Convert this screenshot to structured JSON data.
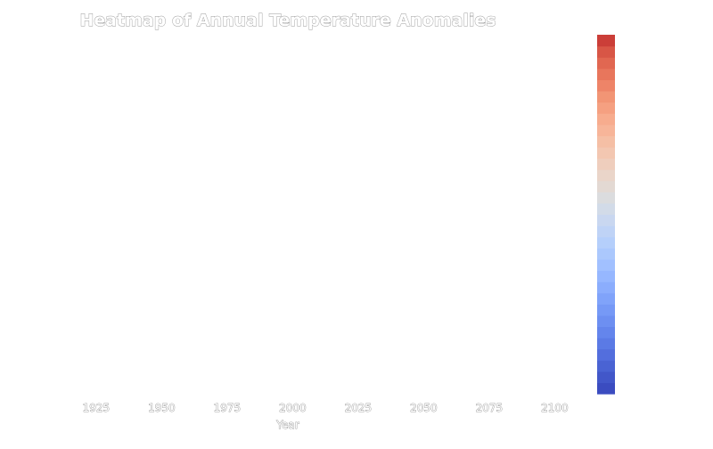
{
  "chart_data": {
    "type": "heatmap",
    "title": "Heatmap of Annual Temperature Anomalies",
    "xlabel": "Year",
    "ylabel": "",
    "x_ticks": [
      "1925",
      "1950",
      "1975",
      "2000",
      "2025",
      "2050",
      "2075",
      "2100"
    ],
    "x_tick_values": [
      1925,
      1950,
      1975,
      2000,
      2025,
      2050,
      2075,
      2100
    ],
    "xlim": [
      1906,
      2106
    ],
    "values": [],
    "grid": false,
    "colorbar": {
      "colormap": "coolwarm",
      "levels": 32,
      "ticks": [],
      "colors": [
        "#3b4cc0",
        "#4257c9",
        "#4a63d3",
        "#536edd",
        "#5b7ae5",
        "#6485ec",
        "#6d8ff1",
        "#7699f6",
        "#80a3fa",
        "#8badfd",
        "#96b7ff",
        "#a1c0ff",
        "#abc8fd",
        "#b5cffb",
        "#bfd3f6",
        "#c9d7f0",
        "#d2dbe8",
        "#dbdcde",
        "#e3d9d3",
        "#ead5c9",
        "#efcebd",
        "#f3c7b1",
        "#f5bfa5",
        "#f7b599",
        "#f7ac8e",
        "#f5a081",
        "#f29575",
        "#ee8468",
        "#e8765c",
        "#e16751",
        "#d85646",
        "#cb3e38"
      ]
    }
  }
}
